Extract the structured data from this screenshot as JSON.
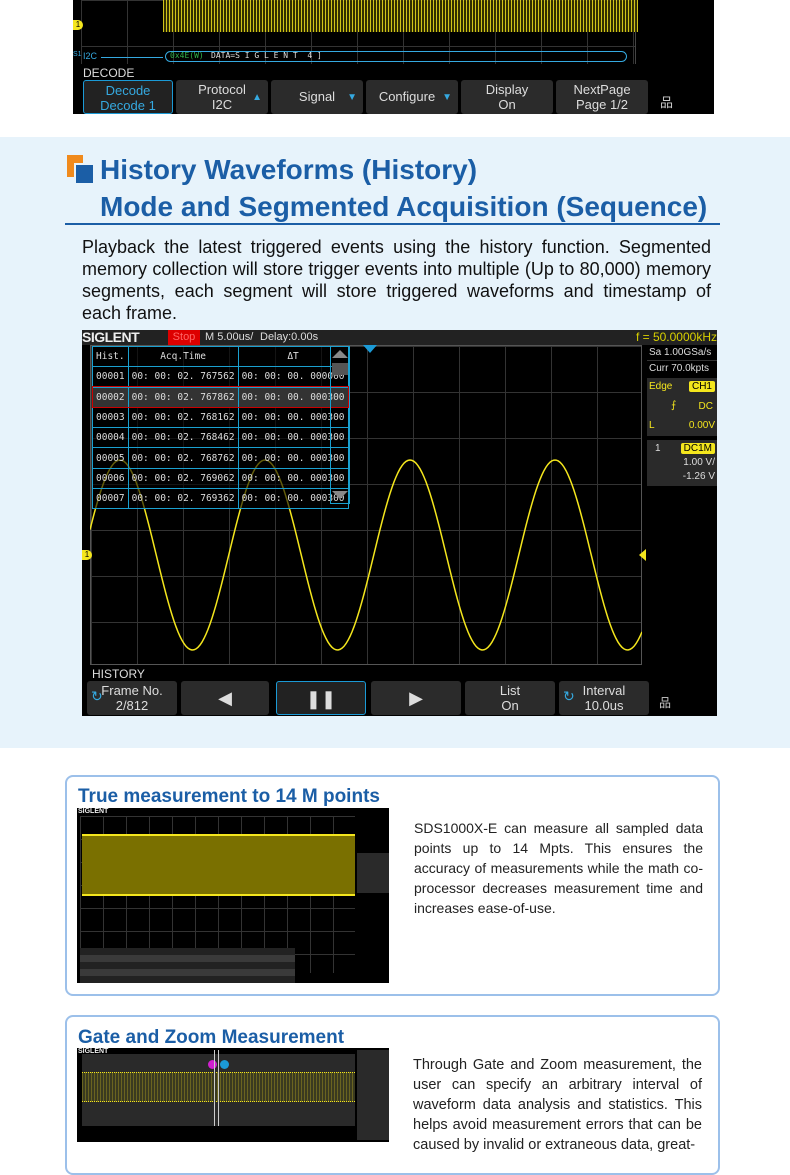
{
  "decode_scope": {
    "bus_label": "I2C",
    "bus_source": "S1",
    "bus_addr": "0x4E(W)",
    "bus_data": "DATA=S I G L E N T  4 ]",
    "menu_title": "DECODE",
    "softkeys": [
      {
        "l1": "Decode",
        "l2": "Decode 1"
      },
      {
        "l1": "Protocol",
        "l2": "I2C"
      },
      {
        "l1": "Signal",
        "l2": ""
      },
      {
        "l1": "Configure",
        "l2": ""
      },
      {
        "l1": "Display",
        "l2": "On"
      },
      {
        "l1": "NextPage",
        "l2": "Page 1/2"
      }
    ],
    "colors": {
      "trace": "#f4e61d",
      "accent": "#1b9ad6"
    }
  },
  "section": {
    "heading_line1": "History Waveforms (History)",
    "heading_line2": "Mode and Segmented Acquisition (Sequence)",
    "paragraph": "Playback the latest triggered events using the history function. Segmented memory collection will store trigger events into multiple (Up to 80,000) memory segments, each segment will store triggered waveforms and timestamp of each frame."
  },
  "history_scope": {
    "brand": "SIGLENT",
    "status": "Stop",
    "timebase": "M 5.00us/",
    "delay": "Delay:0.00s",
    "freq": "f = 50.0000kHz",
    "sample_rate": "Sa 1.00GSa/s",
    "curr": "Curr 70.0kpts",
    "trigger": {
      "type": "Edge",
      "source": "CH1",
      "coupling": "DC",
      "level_label": "L",
      "level": "0.00V"
    },
    "channel": {
      "num": "1",
      "coupling": "DC1M",
      "scale": "1.00 V/",
      "offset": "-1.26 V"
    },
    "table": {
      "headers": [
        "Hist.",
        "Acq.Time",
        "ΔT"
      ],
      "rows": [
        [
          "00001",
          "00: 00: 02. 767562",
          "00: 00: 00. 000000"
        ],
        [
          "00002",
          "00: 00: 02. 767862",
          "00: 00: 00. 000300"
        ],
        [
          "00003",
          "00: 00: 02. 768162",
          "00: 00: 00. 000300"
        ],
        [
          "00004",
          "00: 00: 02. 768462",
          "00: 00: 00. 000300"
        ],
        [
          "00005",
          "00: 00: 02. 768762",
          "00: 00: 00. 000300"
        ],
        [
          "00006",
          "00: 00: 02. 769062",
          "00: 00: 00. 000300"
        ],
        [
          "00007",
          "00: 00: 02. 769362",
          "00: 00: 00. 000300"
        ]
      ],
      "selected_row": 2
    },
    "menu_title": "HISTORY",
    "softkeys": [
      {
        "l1": "Frame No.",
        "l2": "2/812"
      },
      {
        "icon": "prev-icon"
      },
      {
        "icon": "pause-icon"
      },
      {
        "icon": "next-icon"
      },
      {
        "l1": "List",
        "l2": "On"
      },
      {
        "l1": "Interval",
        "l2": "10.0us"
      }
    ]
  },
  "features": [
    {
      "title": "True measurement to 14 M points",
      "text": "SDS1000X-E can measure all sampled data points up to 14 Mpts. This ensures the accuracy of measurements while the math co-processor decreases measurement time and increases ease-of-use.",
      "screen_brand": "SIGLENT"
    },
    {
      "title": "Gate and Zoom Measurement",
      "text": "Through Gate and Zoom measurement, the user can specify an arbitrary interval of waveform data analysis and statistics. This helps avoid measurement errors that can be caused by invalid or extraneous data, great-",
      "screen_brand": "SIGLENT"
    }
  ]
}
